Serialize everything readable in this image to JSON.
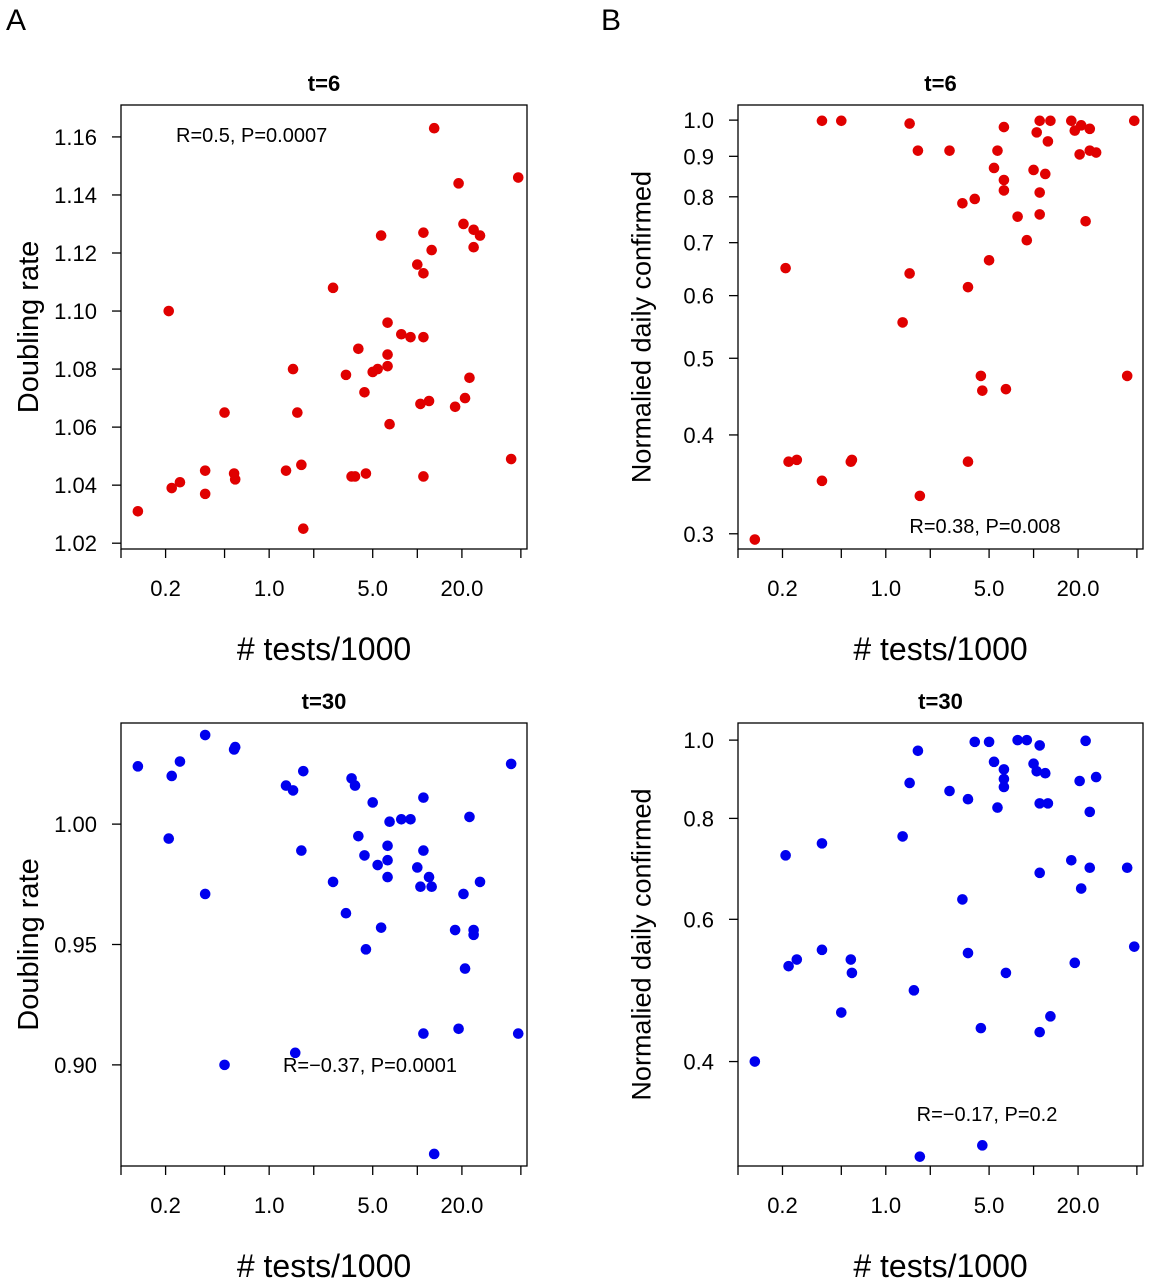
{
  "panel_letters": {
    "left": "A",
    "right": "B"
  },
  "colors": {
    "t6": "#e00000",
    "t30": "#0000ee",
    "axis": "#000000"
  },
  "chart_data": [
    {
      "id": "A-top",
      "type": "scatter",
      "title": "t=6",
      "xlabel": "# tests/1000",
      "ylabel": "Doubling rate",
      "xscale": "log",
      "xlim": [
        0.1,
        55
      ],
      "ylim": [
        1.018,
        1.171
      ],
      "xticks": [
        0.1,
        0.2,
        0.5,
        1.0,
        2.0,
        5.0,
        10,
        20.0,
        50
      ],
      "xticklabels": [
        "",
        "0.2",
        "",
        "1.0",
        "",
        "5.0",
        "",
        "20.0",
        ""
      ],
      "yticks": [
        1.02,
        1.04,
        1.06,
        1.08,
        1.1,
        1.12,
        1.14,
        1.16
      ],
      "yticklabels": [
        "1.02",
        "1.04",
        "1.06",
        "1.08",
        "1.10",
        "1.12",
        "1.14",
        "1.16"
      ],
      "annotation": "R=0.5, P=0.0007",
      "annotation_position": "top-left",
      "series": [
        {
          "color": "#e00000",
          "points": [
            [
              0.13,
              1.031
            ],
            [
              0.21,
              1.1
            ],
            [
              0.22,
              1.039
            ],
            [
              0.25,
              1.041
            ],
            [
              0.37,
              1.045
            ],
            [
              0.37,
              1.037
            ],
            [
              0.5,
              1.065
            ],
            [
              0.58,
              1.044
            ],
            [
              0.59,
              1.042
            ],
            [
              1.3,
              1.045
            ],
            [
              1.45,
              1.08
            ],
            [
              1.55,
              1.065
            ],
            [
              1.65,
              1.047
            ],
            [
              1.7,
              1.025
            ],
            [
              2.7,
              1.108
            ],
            [
              3.3,
              1.078
            ],
            [
              3.6,
              1.043
            ],
            [
              3.8,
              1.043
            ],
            [
              4.0,
              1.087
            ],
            [
              4.4,
              1.072
            ],
            [
              4.5,
              1.044
            ],
            [
              5.0,
              1.079
            ],
            [
              5.4,
              1.08
            ],
            [
              5.7,
              1.126
            ],
            [
              6.3,
              1.081
            ],
            [
              6.3,
              1.085
            ],
            [
              6.3,
              1.096
            ],
            [
              6.5,
              1.061
            ],
            [
              7.8,
              1.092
            ],
            [
              9.0,
              1.091
            ],
            [
              10.0,
              1.116
            ],
            [
              10.5,
              1.068
            ],
            [
              11.0,
              1.127
            ],
            [
              11.0,
              1.113
            ],
            [
              11.0,
              1.043
            ],
            [
              11.0,
              1.091
            ],
            [
              12.0,
              1.069
            ],
            [
              12.5,
              1.121
            ],
            [
              13.0,
              1.163
            ],
            [
              18.0,
              1.067
            ],
            [
              19.0,
              1.144
            ],
            [
              20.5,
              1.13
            ],
            [
              21.0,
              1.07
            ],
            [
              22.5,
              1.077
            ],
            [
              24.0,
              1.128
            ],
            [
              24.0,
              1.122
            ],
            [
              26.5,
              1.126
            ],
            [
              43.0,
              1.049
            ],
            [
              48.0,
              1.146
            ]
          ]
        }
      ]
    },
    {
      "id": "B-top",
      "type": "scatter",
      "title": "t=6",
      "xlabel": "# tests/1000",
      "ylabel": "Normalied daily confirmed",
      "xscale": "log",
      "yscale": "log",
      "xlim": [
        0.1,
        55
      ],
      "ylim": [
        0.287,
        1.045
      ],
      "xticks": [
        0.1,
        0.2,
        0.5,
        1.0,
        2.0,
        5.0,
        10,
        20.0,
        50
      ],
      "xticklabels": [
        "",
        "0.2",
        "",
        "1.0",
        "",
        "5.0",
        "",
        "20.0",
        ""
      ],
      "yticks": [
        0.3,
        0.4,
        0.5,
        0.6,
        0.7,
        0.8,
        0.9,
        1.0
      ],
      "yticklabels": [
        "0.3",
        "0.4",
        "0.5",
        "0.6",
        "0.7",
        "0.8",
        "0.9",
        "1.0"
      ],
      "annotation": "R=0.38, P=0.008",
      "annotation_position": "bottom-right",
      "series": [
        {
          "color": "#e00000",
          "points": [
            [
              0.13,
              0.295
            ],
            [
              0.21,
              0.65
            ],
            [
              0.22,
              0.37
            ],
            [
              0.25,
              0.372
            ],
            [
              0.37,
              0.35
            ],
            [
              0.37,
              0.998
            ],
            [
              0.5,
              0.998
            ],
            [
              0.58,
              0.37
            ],
            [
              0.59,
              0.372
            ],
            [
              1.3,
              0.555
            ],
            [
              1.45,
              0.64
            ],
            [
              1.45,
              0.99
            ],
            [
              1.65,
              0.915
            ],
            [
              1.7,
              0.335
            ],
            [
              2.7,
              0.915
            ],
            [
              3.3,
              0.785
            ],
            [
              3.6,
              0.615
            ],
            [
              3.6,
              0.37
            ],
            [
              4.0,
              0.795
            ],
            [
              4.4,
              0.475
            ],
            [
              4.5,
              0.455
            ],
            [
              5.0,
              0.665
            ],
            [
              5.4,
              0.87
            ],
            [
              5.7,
              0.915
            ],
            [
              6.3,
              0.98
            ],
            [
              6.3,
              0.84
            ],
            [
              6.3,
              0.815
            ],
            [
              6.5,
              0.457
            ],
            [
              7.8,
              0.755
            ],
            [
              9.0,
              0.705
            ],
            [
              10.0,
              0.865
            ],
            [
              10.5,
              0.965
            ],
            [
              11.0,
              0.81
            ],
            [
              11.0,
              0.998
            ],
            [
              11.0,
              0.76
            ],
            [
              12.0,
              0.855
            ],
            [
              12.5,
              0.94
            ],
            [
              13.0,
              0.998
            ],
            [
              18.0,
              0.998
            ],
            [
              19.0,
              0.97
            ],
            [
              20.5,
              0.905
            ],
            [
              21.0,
              0.985
            ],
            [
              22.5,
              0.745
            ],
            [
              24.0,
              0.975
            ],
            [
              24.0,
              0.915
            ],
            [
              26.5,
              0.91
            ],
            [
              43.0,
              0.475
            ],
            [
              48.0,
              0.998
            ]
          ]
        }
      ]
    },
    {
      "id": "A-bottom",
      "type": "scatter",
      "title": "t=30",
      "xlabel": "# tests/1000",
      "ylabel": "Doubling rate",
      "xscale": "log",
      "xlim": [
        0.1,
        55
      ],
      "ylim": [
        0.858,
        1.042
      ],
      "xticks": [
        0.1,
        0.2,
        0.5,
        1.0,
        2.0,
        5.0,
        10,
        20.0,
        50
      ],
      "xticklabels": [
        "",
        "0.2",
        "",
        "1.0",
        "",
        "5.0",
        "",
        "20.0",
        ""
      ],
      "yticks": [
        0.9,
        0.95,
        1.0
      ],
      "yticklabels": [
        "0.90",
        "0.95",
        "1.00"
      ],
      "annotation": "R=−0.37, P=0.0001",
      "annotation_position": "bottom-right",
      "series": [
        {
          "color": "#0000ee",
          "points": [
            [
              0.13,
              1.024
            ],
            [
              0.21,
              0.994
            ],
            [
              0.22,
              1.02
            ],
            [
              0.25,
              1.026
            ],
            [
              0.37,
              1.037
            ],
            [
              0.37,
              0.971
            ],
            [
              0.5,
              0.9
            ],
            [
              0.58,
              1.031
            ],
            [
              0.59,
              1.032
            ],
            [
              1.3,
              1.016
            ],
            [
              1.45,
              1.014
            ],
            [
              1.5,
              0.905
            ],
            [
              1.65,
              0.989
            ],
            [
              1.7,
              1.022
            ],
            [
              2.7,
              0.976
            ],
            [
              3.3,
              0.963
            ],
            [
              3.6,
              1.019
            ],
            [
              3.8,
              1.016
            ],
            [
              4.0,
              0.995
            ],
            [
              4.4,
              0.987
            ],
            [
              4.5,
              0.948
            ],
            [
              5.0,
              1.009
            ],
            [
              5.4,
              0.983
            ],
            [
              5.7,
              0.957
            ],
            [
              6.3,
              0.991
            ],
            [
              6.3,
              0.985
            ],
            [
              6.3,
              0.978
            ],
            [
              6.5,
              1.001
            ],
            [
              7.8,
              1.002
            ],
            [
              9.0,
              1.002
            ],
            [
              10.0,
              0.982
            ],
            [
              10.5,
              0.974
            ],
            [
              11.0,
              0.989
            ],
            [
              11.0,
              1.011
            ],
            [
              11.0,
              0.913
            ],
            [
              12.0,
              0.978
            ],
            [
              12.5,
              0.974
            ],
            [
              13.0,
              0.863
            ],
            [
              18.0,
              0.956
            ],
            [
              19.0,
              0.915
            ],
            [
              20.5,
              0.971
            ],
            [
              21.0,
              0.94
            ],
            [
              22.5,
              1.003
            ],
            [
              24.0,
              0.956
            ],
            [
              24.0,
              0.954
            ],
            [
              26.5,
              0.976
            ],
            [
              43.0,
              1.025
            ],
            [
              48.0,
              0.913
            ]
          ]
        }
      ]
    },
    {
      "id": "B-bottom",
      "type": "scatter",
      "title": "t=30",
      "xlabel": "# tests/1000",
      "ylabel": "Normalied daily confirmed",
      "xscale": "log",
      "yscale": "log",
      "xlim": [
        0.1,
        55
      ],
      "ylim": [
        0.297,
        1.05
      ],
      "xticks": [
        0.1,
        0.2,
        0.5,
        1.0,
        2.0,
        5.0,
        10,
        20.0,
        50
      ],
      "xticklabels": [
        "",
        "0.2",
        "",
        "1.0",
        "",
        "5.0",
        "",
        "20.0",
        ""
      ],
      "yticks": [
        0.4,
        0.6,
        0.8,
        1.0
      ],
      "yticklabels": [
        "0.4",
        "0.6",
        "0.8",
        "1.0"
      ],
      "annotation": "R=−0.17, P=0.2",
      "annotation_position": "bottom-right",
      "series": [
        {
          "color": "#0000ee",
          "points": [
            [
              0.13,
              0.4
            ],
            [
              0.21,
              0.72
            ],
            [
              0.22,
              0.525
            ],
            [
              0.25,
              0.535
            ],
            [
              0.37,
              0.745
            ],
            [
              0.37,
              0.55
            ],
            [
              0.5,
              0.46
            ],
            [
              0.58,
              0.535
            ],
            [
              0.59,
              0.515
            ],
            [
              1.3,
              0.76
            ],
            [
              1.45,
              0.885
            ],
            [
              1.55,
              0.49
            ],
            [
              1.65,
              0.97
            ],
            [
              1.7,
              0.305
            ],
            [
              2.7,
              0.865
            ],
            [
              3.3,
              0.635
            ],
            [
              3.6,
              0.545
            ],
            [
              3.6,
              0.845
            ],
            [
              4.0,
              0.995
            ],
            [
              4.4,
              0.44
            ],
            [
              4.5,
              0.315
            ],
            [
              5.0,
              0.995
            ],
            [
              5.4,
              0.94
            ],
            [
              5.7,
              0.825
            ],
            [
              6.3,
              0.92
            ],
            [
              6.3,
              0.895
            ],
            [
              6.3,
              0.875
            ],
            [
              6.5,
              0.515
            ],
            [
              7.8,
              1.0
            ],
            [
              9.0,
              1.0
            ],
            [
              10.0,
              0.935
            ],
            [
              10.5,
              0.915
            ],
            [
              11.0,
              0.985
            ],
            [
              11.0,
              0.835
            ],
            [
              11.0,
              0.685
            ],
            [
              11.0,
              0.435
            ],
            [
              12.0,
              0.91
            ],
            [
              12.5,
              0.835
            ],
            [
              13.0,
              0.455
            ],
            [
              18.0,
              0.71
            ],
            [
              19.0,
              0.53
            ],
            [
              20.5,
              0.89
            ],
            [
              21.0,
              0.655
            ],
            [
              22.5,
              0.998
            ],
            [
              24.0,
              0.695
            ],
            [
              24.0,
              0.815
            ],
            [
              26.5,
              0.9
            ],
            [
              43.0,
              0.695
            ],
            [
              48.0,
              0.555
            ]
          ]
        }
      ]
    }
  ]
}
